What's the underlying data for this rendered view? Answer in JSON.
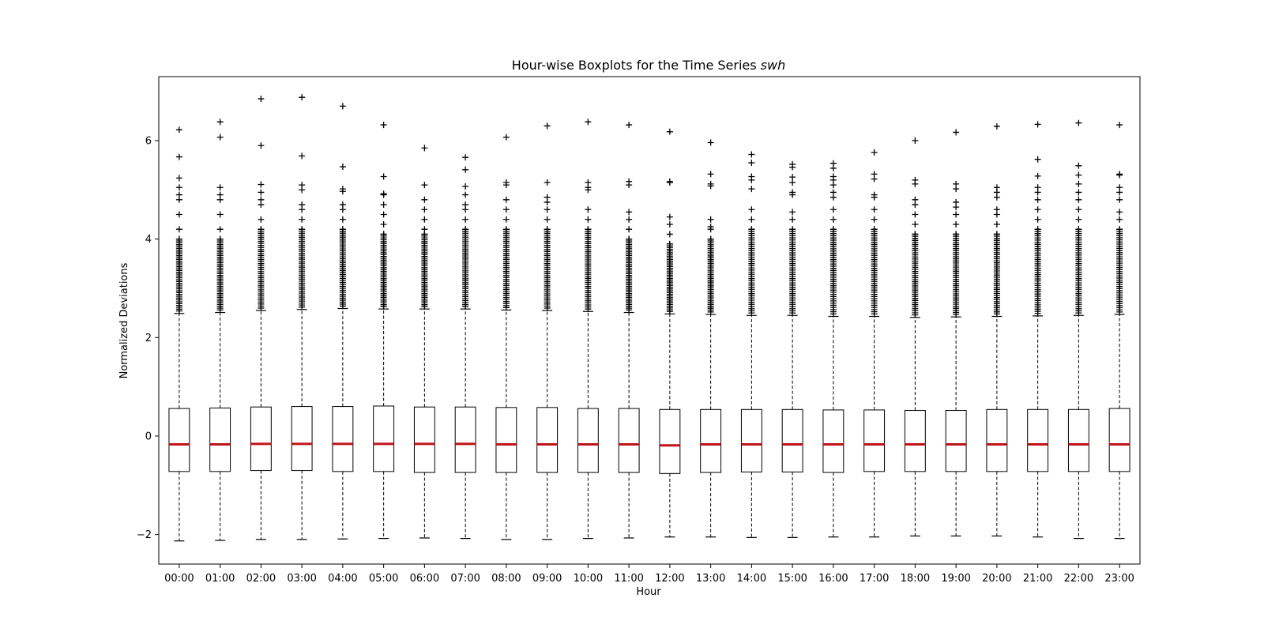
{
  "chart_data": {
    "type": "boxplot",
    "title_main": "Hour-wise Boxplots for the Time Series ",
    "title_italic": "swh",
    "xlabel": "Hour",
    "ylabel": "Normalized Deviations",
    "ylim": [
      -2.6,
      7.3
    ],
    "yticks": [
      -2,
      0,
      2,
      4,
      6
    ],
    "ytick_labels": [
      "−2",
      "0",
      "2",
      "4",
      "6"
    ],
    "grid": false,
    "colors": {
      "median": "#c0141a",
      "box": "#000000",
      "outlier": "#000000"
    },
    "categories": [
      "00:00",
      "01:00",
      "02:00",
      "03:00",
      "04:00",
      "05:00",
      "06:00",
      "07:00",
      "08:00",
      "09:00",
      "10:00",
      "11:00",
      "12:00",
      "13:00",
      "14:00",
      "15:00",
      "16:00",
      "17:00",
      "18:00",
      "19:00",
      "20:00",
      "21:00",
      "22:00",
      "23:00"
    ],
    "boxes": [
      {
        "whislo": -2.13,
        "q1": -0.72,
        "med": -0.17,
        "q3": 0.56,
        "whishi": 2.49,
        "fliers": [
          6.22,
          5.67,
          5.24,
          5.05,
          4.9,
          4.8,
          4.5,
          4.2,
          4.0
        ]
      },
      {
        "whislo": -2.12,
        "q1": -0.72,
        "med": -0.17,
        "q3": 0.57,
        "whishi": 2.51,
        "fliers": [
          6.38,
          6.07,
          5.05,
          4.9,
          4.8,
          4.5,
          4.2,
          4.0
        ]
      },
      {
        "whislo": -2.1,
        "q1": -0.7,
        "med": -0.16,
        "q3": 0.59,
        "whishi": 2.55,
        "fliers": [
          6.85,
          5.9,
          5.11,
          4.95,
          4.8,
          4.7,
          4.4,
          4.2
        ]
      },
      {
        "whislo": -2.1,
        "q1": -0.7,
        "med": -0.16,
        "q3": 0.6,
        "whishi": 2.57,
        "fliers": [
          6.88,
          5.69,
          5.1,
          5.0,
          4.7,
          4.6,
          4.4,
          4.2
        ]
      },
      {
        "whislo": -2.09,
        "q1": -0.72,
        "med": -0.16,
        "q3": 0.6,
        "whishi": 2.59,
        "fliers": [
          6.7,
          5.47,
          5.02,
          4.97,
          4.7,
          4.6,
          4.4,
          4.2
        ]
      },
      {
        "whislo": -2.08,
        "q1": -0.72,
        "med": -0.16,
        "q3": 0.61,
        "whishi": 2.58,
        "fliers": [
          6.32,
          5.27,
          4.92,
          4.9,
          4.7,
          4.5,
          4.3,
          4.1
        ]
      },
      {
        "whislo": -2.07,
        "q1": -0.74,
        "med": -0.16,
        "q3": 0.59,
        "whishi": 2.58,
        "fliers": [
          5.85,
          5.1,
          4.8,
          4.6,
          4.4,
          4.2,
          4.1
        ]
      },
      {
        "whislo": -2.08,
        "q1": -0.74,
        "med": -0.16,
        "q3": 0.59,
        "whishi": 2.58,
        "fliers": [
          5.66,
          5.41,
          5.07,
          4.9,
          4.7,
          4.6,
          4.4,
          4.2
        ]
      },
      {
        "whislo": -2.1,
        "q1": -0.74,
        "med": -0.17,
        "q3": 0.58,
        "whishi": 2.56,
        "fliers": [
          6.07,
          5.15,
          5.1,
          4.8,
          4.6,
          4.4,
          4.2
        ]
      },
      {
        "whislo": -2.1,
        "q1": -0.74,
        "med": -0.17,
        "q3": 0.58,
        "whishi": 2.55,
        "fliers": [
          6.3,
          5.15,
          4.85,
          4.75,
          4.6,
          4.4,
          4.2
        ]
      },
      {
        "whislo": -2.08,
        "q1": -0.74,
        "med": -0.17,
        "q3": 0.56,
        "whishi": 2.53,
        "fliers": [
          6.38,
          5.15,
          5.05,
          5.0,
          4.6,
          4.4,
          4.2
        ]
      },
      {
        "whislo": -2.07,
        "q1": -0.74,
        "med": -0.17,
        "q3": 0.56,
        "whishi": 2.51,
        "fliers": [
          6.32,
          5.17,
          5.1,
          4.55,
          4.4,
          4.2,
          4.0
        ]
      },
      {
        "whislo": -2.05,
        "q1": -0.76,
        "med": -0.19,
        "q3": 0.54,
        "whishi": 2.48,
        "fliers": [
          6.18,
          5.17,
          5.15,
          4.45,
          4.3,
          4.1,
          3.9
        ]
      },
      {
        "whislo": -2.05,
        "q1": -0.74,
        "med": -0.17,
        "q3": 0.54,
        "whishi": 2.47,
        "fliers": [
          5.96,
          5.32,
          5.12,
          5.08,
          4.4,
          4.25,
          4.2,
          4.0
        ]
      },
      {
        "whislo": -2.06,
        "q1": -0.73,
        "med": -0.17,
        "q3": 0.54,
        "whishi": 2.45,
        "fliers": [
          5.72,
          5.55,
          5.27,
          5.2,
          5.02,
          4.6,
          4.4,
          4.2
        ]
      },
      {
        "whislo": -2.06,
        "q1": -0.73,
        "med": -0.17,
        "q3": 0.54,
        "whishi": 2.45,
        "fliers": [
          5.52,
          5.46,
          5.26,
          5.15,
          4.95,
          4.9,
          4.55,
          4.4,
          4.2
        ]
      },
      {
        "whislo": -2.05,
        "q1": -0.74,
        "med": -0.17,
        "q3": 0.53,
        "whishi": 2.43,
        "fliers": [
          5.54,
          5.44,
          5.27,
          5.2,
          5.1,
          4.95,
          4.85,
          4.6,
          4.4,
          4.2
        ]
      },
      {
        "whislo": -2.05,
        "q1": -0.72,
        "med": -0.17,
        "q3": 0.53,
        "whishi": 2.43,
        "fliers": [
          5.76,
          5.32,
          5.22,
          4.9,
          4.85,
          4.6,
          4.4,
          4.2
        ]
      },
      {
        "whislo": -2.03,
        "q1": -0.72,
        "med": -0.17,
        "q3": 0.52,
        "whishi": 2.41,
        "fliers": [
          6.0,
          5.2,
          5.12,
          4.8,
          4.7,
          4.5,
          4.3,
          4.1
        ]
      },
      {
        "whislo": -2.03,
        "q1": -0.72,
        "med": -0.17,
        "q3": 0.52,
        "whishi": 2.42,
        "fliers": [
          6.17,
          5.12,
          5.02,
          4.75,
          4.65,
          4.5,
          4.3,
          4.1
        ]
      },
      {
        "whislo": -2.03,
        "q1": -0.72,
        "med": -0.17,
        "q3": 0.54,
        "whishi": 2.43,
        "fliers": [
          6.29,
          5.05,
          4.95,
          4.85,
          4.6,
          4.5,
          4.3,
          4.1
        ]
      },
      {
        "whislo": -2.05,
        "q1": -0.72,
        "med": -0.17,
        "q3": 0.54,
        "whishi": 2.44,
        "fliers": [
          6.33,
          5.62,
          5.28,
          5.05,
          4.95,
          4.8,
          4.6,
          4.4,
          4.2
        ]
      },
      {
        "whislo": -2.08,
        "q1": -0.72,
        "med": -0.17,
        "q3": 0.54,
        "whishi": 2.45,
        "fliers": [
          6.36,
          5.49,
          5.3,
          5.12,
          4.95,
          4.8,
          4.6,
          4.4,
          4.2
        ]
      },
      {
        "whislo": -2.08,
        "q1": -0.72,
        "med": -0.17,
        "q3": 0.56,
        "whishi": 2.47,
        "fliers": [
          6.32,
          5.32,
          5.3,
          5.05,
          4.95,
          4.8,
          4.55,
          4.4,
          4.2
        ]
      }
    ]
  }
}
